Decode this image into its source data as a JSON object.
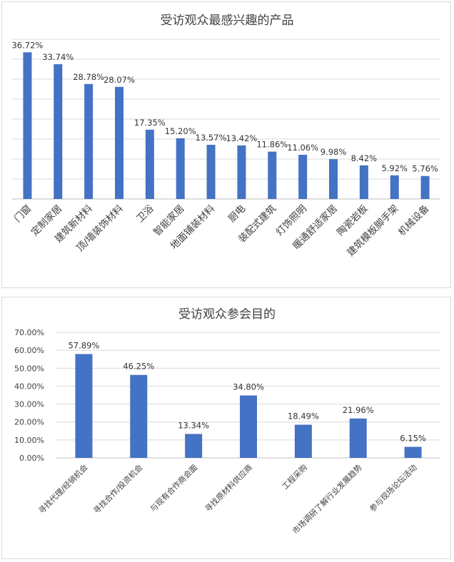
{
  "chart_data": [
    {
      "type": "bar",
      "title": "受访观众最感兴趣的产品",
      "categories": [
        "门窗",
        "定制家居",
        "建筑新材料",
        "顶/墙装饰材料",
        "卫浴",
        "智能家居",
        "地面铺装材料",
        "厨电",
        "装配式建筑",
        "灯饰照明",
        "暖通舒适家居",
        "陶瓷岩板",
        "建筑模板脚手架",
        "机械设备"
      ],
      "values": [
        36.72,
        33.74,
        28.78,
        28.07,
        17.35,
        15.2,
        13.57,
        13.42,
        11.86,
        11.06,
        9.98,
        8.42,
        5.92,
        5.76
      ],
      "labels": [
        "36.72%",
        "33.74%",
        "28.78%",
        "28.07%",
        "17.35%",
        "15.20%",
        "13.57%",
        "13.42%",
        "11.86%",
        "11.06%",
        "9.98%",
        "8.42%",
        "5.92%",
        "5.76%"
      ],
      "ylim": [
        0,
        40
      ],
      "grid": true,
      "color": "#4472c4"
    },
    {
      "type": "bar",
      "title": "受访观众参会目的",
      "categories": [
        "寻找代理/经销机会",
        "寻找合作/投资机会",
        "与现有合作商会面",
        "寻找原材料供应商",
        "工程采购",
        "市场调研了解行业发展趋势",
        "参与现场论坛活动"
      ],
      "values": [
        57.89,
        46.25,
        13.34,
        34.8,
        18.49,
        21.96,
        6.15
      ],
      "labels": [
        "57.89%",
        "46.25%",
        "13.34%",
        "34.80%",
        "18.49%",
        "21.96%",
        "6.15%"
      ],
      "yticks": [
        "0.00%",
        "10.00%",
        "20.00%",
        "30.00%",
        "40.00%",
        "50.00%",
        "60.00%",
        "70.00%"
      ],
      "ylim": [
        0,
        70
      ],
      "grid": true,
      "color": "#4472c4"
    }
  ]
}
